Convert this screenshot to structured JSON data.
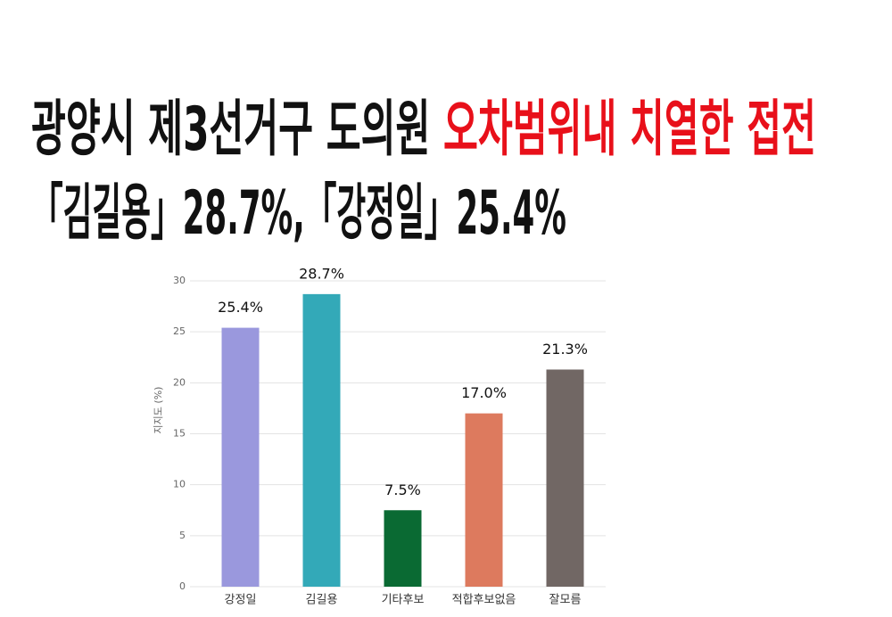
{
  "headline": {
    "line1_black": "광양시 제3선거구 도의원 ",
    "line1_red": "오차범위내 치열한 접전",
    "line2": "「김길용」28.7%,「강정일」25.4%"
  },
  "chart_data": {
    "type": "bar",
    "y_label": "지지도 (%)",
    "categories": [
      "강정일",
      "김길용",
      "기타후보",
      "적합후보없음",
      "잘모름"
    ],
    "values": [
      25.4,
      28.7,
      7.5,
      17.0,
      21.3
    ],
    "value_labels": [
      "25.4%",
      "28.7%",
      "7.5%",
      "17.0%",
      "21.3%"
    ],
    "colors": [
      "#9a98dd",
      "#33a9b8",
      "#0a6a33",
      "#dd7a5e",
      "#716764"
    ],
    "ylim": [
      0,
      30
    ],
    "yticks": [
      0,
      5,
      10,
      15,
      20,
      25,
      30
    ],
    "grid": true
  }
}
